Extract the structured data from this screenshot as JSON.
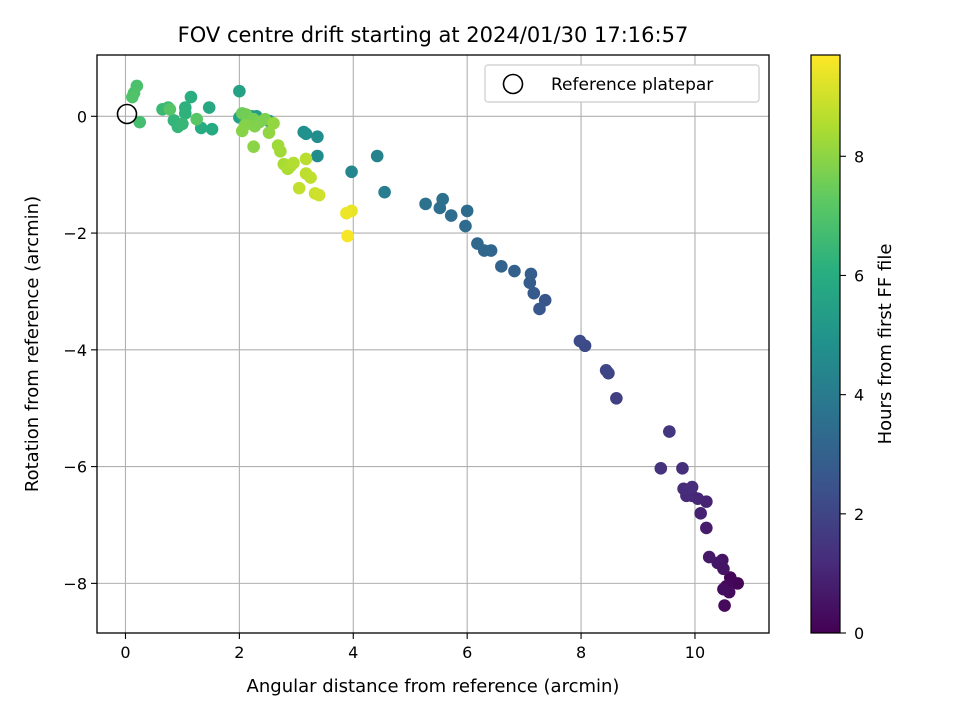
{
  "chart_data": {
    "type": "scatter",
    "title": "FOV centre drift starting at 2024/01/30 17:16:57",
    "xlabel": "Angular distance from reference (arcmin)",
    "ylabel": "Rotation from reference (arcmin)",
    "xlim": [
      -0.5,
      11.3
    ],
    "ylim": [
      -8.85,
      1.05
    ],
    "xticks": [
      0,
      2,
      4,
      6,
      8,
      10
    ],
    "yticks": [
      0,
      -2,
      -4,
      -6,
      -8
    ],
    "xtick_labels": [
      "0",
      "2",
      "4",
      "6",
      "8",
      "10"
    ],
    "ytick_labels": [
      "0",
      "−2",
      "−4",
      "−6",
      "−8"
    ],
    "grid": true,
    "legend": {
      "position": "top-right",
      "entries": [
        {
          "label": "Reference platepar",
          "marker": "open-circle",
          "x": 0,
          "y": 0
        }
      ]
    },
    "colorbar": {
      "label": "Hours from first FF file",
      "colormap": "viridis",
      "range": [
        0,
        9.7
      ],
      "ticks": [
        0,
        2,
        4,
        6,
        8
      ],
      "tick_labels": [
        "0",
        "2",
        "4",
        "6",
        "8"
      ]
    },
    "points": [
      {
        "x": 10.75,
        "y": -8.0,
        "h": 0.1
      },
      {
        "x": 10.62,
        "y": -7.9,
        "h": 0.15
      },
      {
        "x": 10.55,
        "y": -8.05,
        "h": 0.2
      },
      {
        "x": 10.6,
        "y": -8.15,
        "h": 0.3
      },
      {
        "x": 10.5,
        "y": -8.1,
        "h": 0.35
      },
      {
        "x": 10.52,
        "y": -8.38,
        "h": 0.25
      },
      {
        "x": 10.48,
        "y": -7.6,
        "h": 0.5
      },
      {
        "x": 10.4,
        "y": -7.65,
        "h": 0.6
      },
      {
        "x": 10.25,
        "y": -7.55,
        "h": 0.65
      },
      {
        "x": 10.5,
        "y": -7.75,
        "h": 0.55
      },
      {
        "x": 10.2,
        "y": -7.05,
        "h": 0.8
      },
      {
        "x": 10.1,
        "y": -6.8,
        "h": 0.95
      },
      {
        "x": 10.2,
        "y": -6.6,
        "h": 1.0
      },
      {
        "x": 10.05,
        "y": -6.55,
        "h": 1.05
      },
      {
        "x": 9.95,
        "y": -6.5,
        "h": 1.1
      },
      {
        "x": 9.85,
        "y": -6.5,
        "h": 1.15
      },
      {
        "x": 9.8,
        "y": -6.38,
        "h": 1.2
      },
      {
        "x": 9.95,
        "y": -6.35,
        "h": 1.25
      },
      {
        "x": 9.78,
        "y": -6.03,
        "h": 1.35
      },
      {
        "x": 9.4,
        "y": -6.03,
        "h": 1.45
      },
      {
        "x": 9.55,
        "y": -5.4,
        "h": 1.55
      },
      {
        "x": 8.62,
        "y": -4.83,
        "h": 1.8
      },
      {
        "x": 8.48,
        "y": -4.4,
        "h": 2.0
      },
      {
        "x": 8.44,
        "y": -4.35,
        "h": 2.05
      },
      {
        "x": 8.07,
        "y": -3.93,
        "h": 2.2
      },
      {
        "x": 7.98,
        "y": -3.85,
        "h": 2.25
      },
      {
        "x": 7.37,
        "y": -3.15,
        "h": 2.6
      },
      {
        "x": 7.27,
        "y": -3.3,
        "h": 2.65
      },
      {
        "x": 7.17,
        "y": -3.03,
        "h": 2.75
      },
      {
        "x": 7.1,
        "y": -2.85,
        "h": 2.85
      },
      {
        "x": 7.12,
        "y": -2.7,
        "h": 2.9
      },
      {
        "x": 6.83,
        "y": -2.65,
        "h": 3.0
      },
      {
        "x": 6.6,
        "y": -2.57,
        "h": 3.1
      },
      {
        "x": 6.42,
        "y": -2.3,
        "h": 3.2
      },
      {
        "x": 6.3,
        "y": -2.3,
        "h": 3.25
      },
      {
        "x": 6.18,
        "y": -2.18,
        "h": 3.3
      },
      {
        "x": 5.97,
        "y": -1.88,
        "h": 3.4
      },
      {
        "x": 6.0,
        "y": -1.62,
        "h": 3.45
      },
      {
        "x": 5.72,
        "y": -1.7,
        "h": 3.5
      },
      {
        "x": 5.52,
        "y": -1.57,
        "h": 3.55
      },
      {
        "x": 5.57,
        "y": -1.42,
        "h": 3.6
      },
      {
        "x": 5.27,
        "y": -1.5,
        "h": 3.65
      },
      {
        "x": 4.55,
        "y": -1.3,
        "h": 4.1
      },
      {
        "x": 3.97,
        "y": -0.95,
        "h": 4.45
      },
      {
        "x": 4.42,
        "y": -0.68,
        "h": 4.3
      },
      {
        "x": 3.37,
        "y": -0.68,
        "h": 4.7
      },
      {
        "x": 3.37,
        "y": -0.35,
        "h": 4.75
      },
      {
        "x": 3.13,
        "y": -0.27,
        "h": 4.85
      },
      {
        "x": 3.17,
        "y": -0.3,
        "h": 4.9
      },
      {
        "x": 2.52,
        "y": -0.08,
        "h": 5.2
      },
      {
        "x": 2.22,
        "y": 0.0,
        "h": 5.3
      },
      {
        "x": 2.3,
        "y": 0.0,
        "h": 5.35
      },
      {
        "x": 2.0,
        "y": -0.02,
        "h": 5.5
      },
      {
        "x": 2.17,
        "y": -0.1,
        "h": 5.45
      },
      {
        "x": 2.0,
        "y": 0.43,
        "h": 5.6
      },
      {
        "x": 1.47,
        "y": 0.15,
        "h": 5.9
      },
      {
        "x": 1.52,
        "y": -0.22,
        "h": 5.95
      },
      {
        "x": 1.33,
        "y": -0.2,
        "h": 6.0
      },
      {
        "x": 1.15,
        "y": 0.33,
        "h": 6.1
      },
      {
        "x": 1.05,
        "y": 0.15,
        "h": 6.2
      },
      {
        "x": 1.05,
        "y": 0.05,
        "h": 6.25
      },
      {
        "x": 0.85,
        "y": -0.07,
        "h": 6.35
      },
      {
        "x": 0.92,
        "y": -0.18,
        "h": 6.4
      },
      {
        "x": 1.0,
        "y": -0.13,
        "h": 6.45
      },
      {
        "x": 0.65,
        "y": 0.12,
        "h": 6.55
      },
      {
        "x": 0.75,
        "y": 0.15,
        "h": 6.6
      },
      {
        "x": 0.25,
        "y": -0.1,
        "h": 6.8
      },
      {
        "x": 0.2,
        "y": 0.52,
        "h": 6.9
      },
      {
        "x": 0.15,
        "y": 0.4,
        "h": 6.95
      },
      {
        "x": 0.12,
        "y": 0.33,
        "h": 7.0
      },
      {
        "x": 1.25,
        "y": -0.05,
        "h": 7.2
      },
      {
        "x": 0.78,
        "y": 0.12,
        "h": 7.1
      },
      {
        "x": 2.05,
        "y": 0.05,
        "h": 7.5
      },
      {
        "x": 2.12,
        "y": 0.03,
        "h": 7.6
      },
      {
        "x": 2.25,
        "y": -0.05,
        "h": 7.7
      },
      {
        "x": 2.35,
        "y": -0.1,
        "h": 7.75
      },
      {
        "x": 2.45,
        "y": -0.05,
        "h": 7.8
      },
      {
        "x": 2.27,
        "y": -0.17,
        "h": 7.85
      },
      {
        "x": 2.1,
        "y": -0.15,
        "h": 7.9
      },
      {
        "x": 2.05,
        "y": -0.25,
        "h": 7.95
      },
      {
        "x": 2.25,
        "y": -0.52,
        "h": 8.0
      },
      {
        "x": 2.52,
        "y": -0.28,
        "h": 8.1
      },
      {
        "x": 2.6,
        "y": -0.12,
        "h": 8.15
      },
      {
        "x": 2.68,
        "y": -0.5,
        "h": 8.3
      },
      {
        "x": 2.72,
        "y": -0.6,
        "h": 8.35
      },
      {
        "x": 2.78,
        "y": -0.82,
        "h": 8.45
      },
      {
        "x": 2.85,
        "y": -0.9,
        "h": 8.5
      },
      {
        "x": 2.9,
        "y": -0.85,
        "h": 8.55
      },
      {
        "x": 2.95,
        "y": -0.8,
        "h": 8.6
      },
      {
        "x": 3.17,
        "y": -0.73,
        "h": 8.7
      },
      {
        "x": 3.17,
        "y": -0.98,
        "h": 8.75
      },
      {
        "x": 3.25,
        "y": -1.05,
        "h": 8.8
      },
      {
        "x": 3.05,
        "y": -1.23,
        "h": 8.85
      },
      {
        "x": 3.33,
        "y": -1.32,
        "h": 8.95
      },
      {
        "x": 3.4,
        "y": -1.35,
        "h": 9.0
      },
      {
        "x": 3.97,
        "y": -1.62,
        "h": 9.4
      },
      {
        "x": 3.88,
        "y": -1.66,
        "h": 9.45
      },
      {
        "x": 3.9,
        "y": -2.05,
        "h": 9.6
      }
    ]
  }
}
